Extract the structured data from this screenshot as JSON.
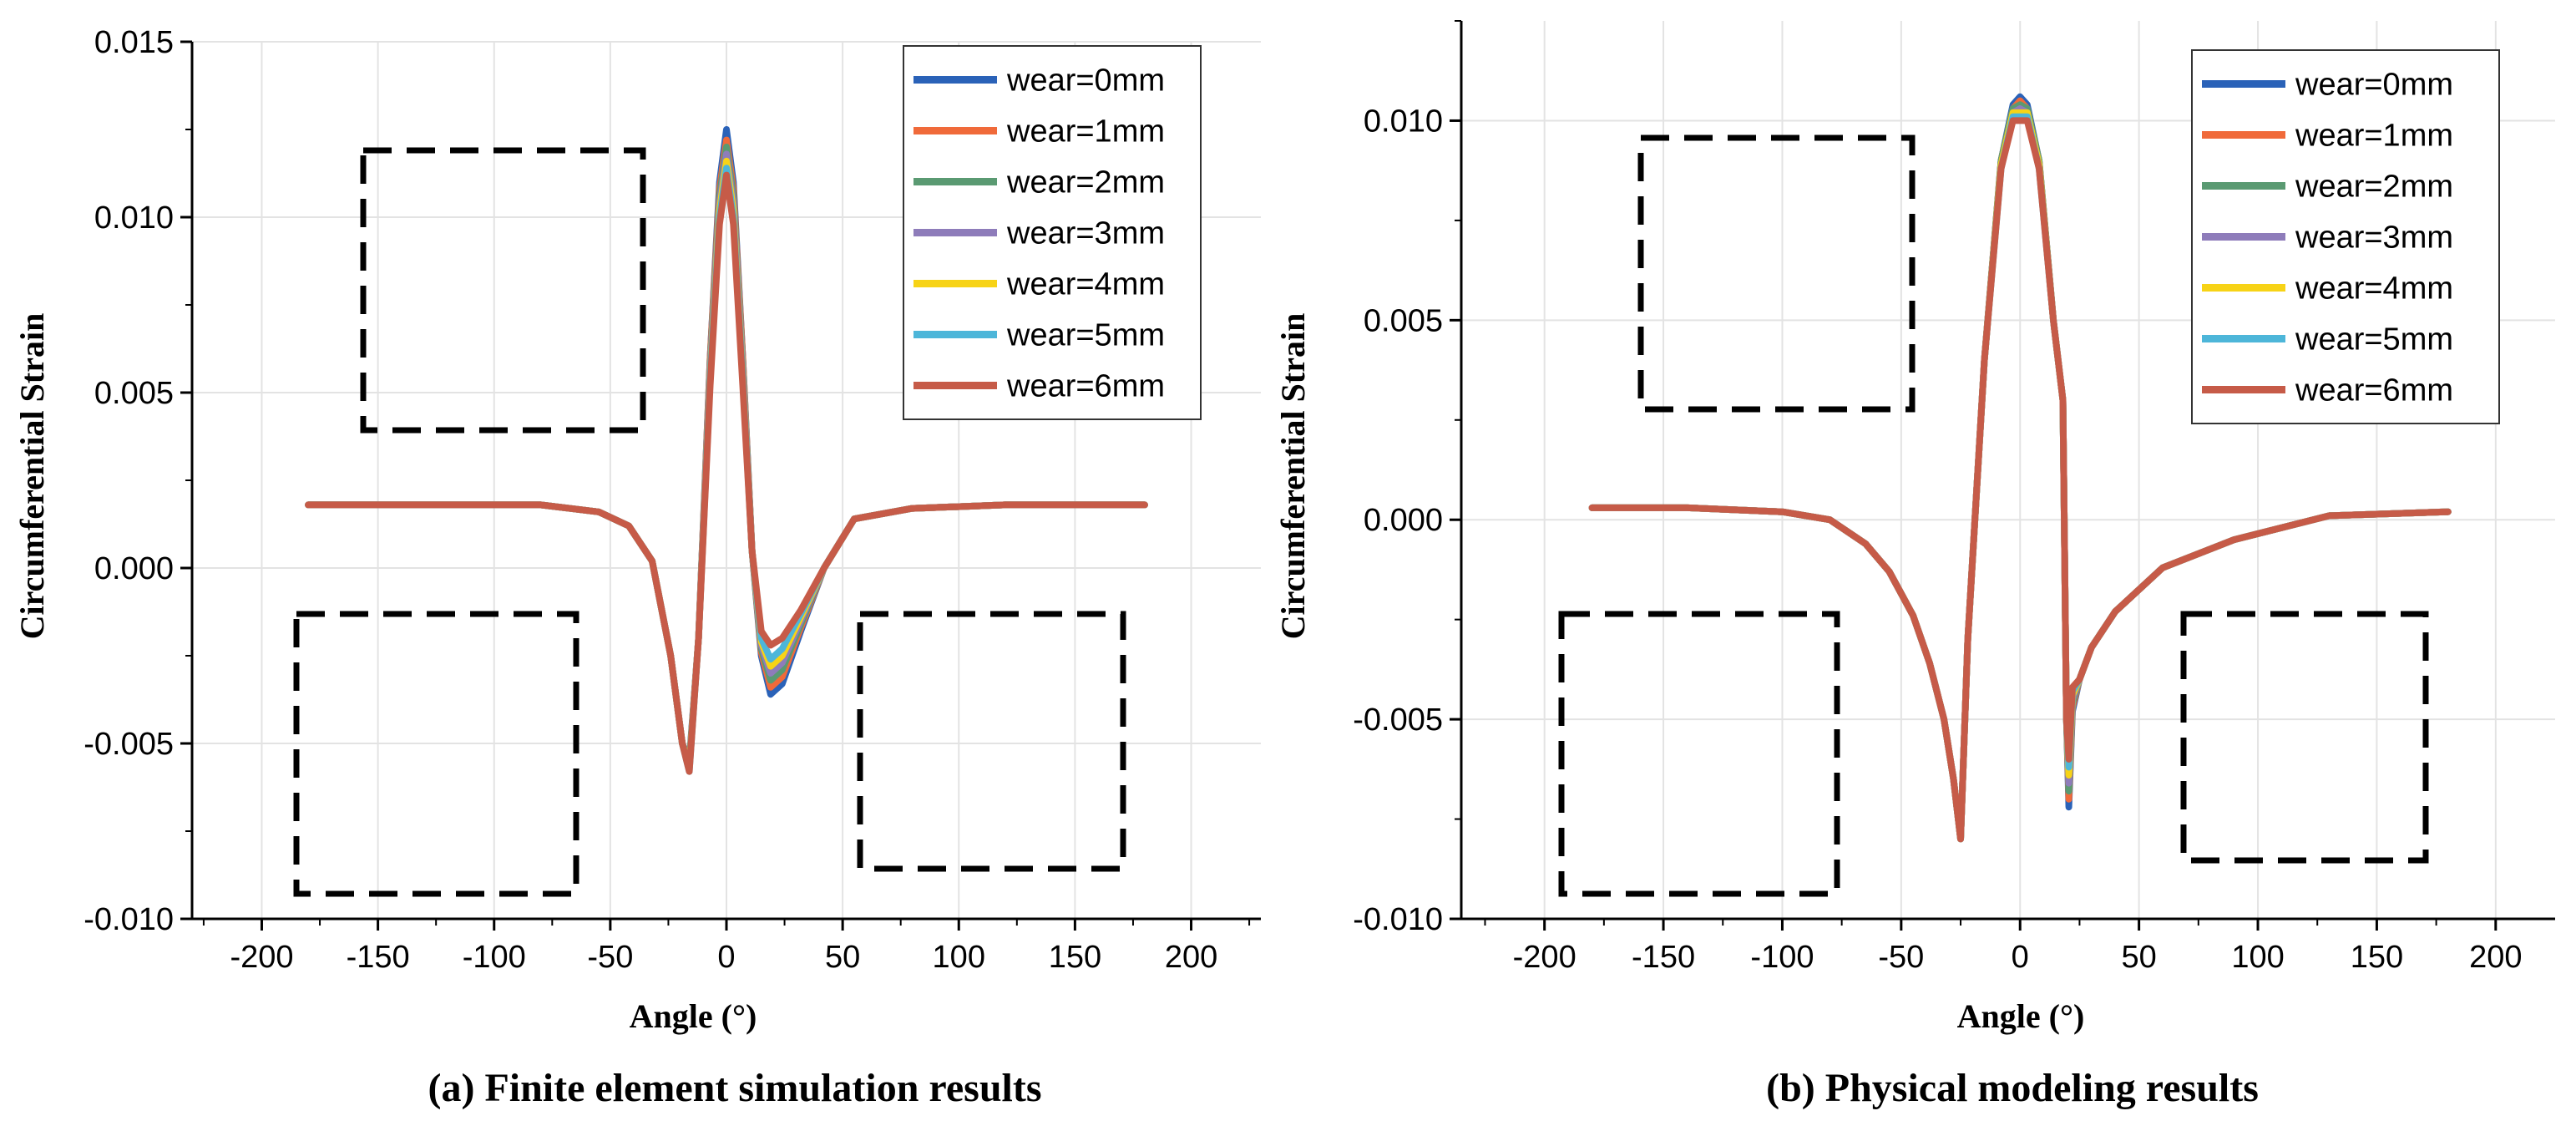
{
  "colors": {
    "wear_0": "#2a62b8",
    "wear_1": "#f06a3a",
    "wear_2": "#5a9a72",
    "wear_3": "#8e7cba",
    "wear_4": "#f7d316",
    "wear_5": "#4db6d9",
    "wear_6": "#c65b48"
  },
  "chart_data": [
    {
      "type": "line",
      "title": "(a) Finite element simulation results",
      "xlabel": "Angle (°)",
      "ylabel": "Circumferential Strain",
      "xlim": [
        -230,
        230
      ],
      "ylim": [
        -0.01,
        0.015
      ],
      "xticks": [
        -200,
        -150,
        -100,
        -50,
        0,
        50,
        100,
        150,
        200
      ],
      "xtick_labels": [
        "-200",
        "-150",
        "-100",
        "-50",
        "0",
        "50",
        "100",
        "150",
        "200"
      ],
      "yticks": [
        -0.01,
        -0.005,
        0.0,
        0.005,
        0.01,
        0.015
      ],
      "ytick_labels": [
        "-0.010",
        "-0.005",
        "0.000",
        "0.005",
        "0.010",
        "0.015"
      ],
      "legend_position": "top-right",
      "grid": true,
      "series": [
        {
          "name": "wear=0mm",
          "x": [
            -180,
            -120,
            -80,
            -55,
            -42,
            -32,
            -24,
            -19,
            -16,
            -12,
            -7,
            -3,
            0,
            3,
            7,
            11,
            15,
            19,
            24,
            32,
            42,
            55,
            80,
            120,
            180
          ],
          "y": [
            0.0018,
            0.0018,
            0.0018,
            0.0016,
            0.0012,
            0.0002,
            -0.0025,
            -0.005,
            -0.0055,
            -0.002,
            0.006,
            0.011,
            0.0125,
            0.011,
            0.006,
            0.0005,
            -0.0025,
            -0.0036,
            -0.0033,
            -0.0018,
            0.0,
            0.0014,
            0.0017,
            0.0018,
            0.0018
          ]
        },
        {
          "name": "wear=1mm",
          "x": [
            -180,
            -120,
            -80,
            -55,
            -42,
            -32,
            -24,
            -19,
            -16,
            -12,
            -7,
            -3,
            0,
            3,
            7,
            11,
            15,
            19,
            24,
            32,
            42,
            55,
            80,
            120,
            180
          ],
          "y": [
            0.0018,
            0.0018,
            0.0018,
            0.0016,
            0.0012,
            0.0002,
            -0.0025,
            -0.005,
            -0.0056,
            -0.002,
            0.006,
            0.0108,
            0.0122,
            0.0108,
            0.006,
            0.0005,
            -0.0024,
            -0.0034,
            -0.0031,
            -0.0017,
            0.0,
            0.0014,
            0.0017,
            0.0018,
            0.0018
          ]
        },
        {
          "name": "wear=2mm",
          "x": [
            -180,
            -120,
            -80,
            -55,
            -42,
            -32,
            -24,
            -19,
            -16,
            -12,
            -7,
            -3,
            0,
            3,
            7,
            11,
            15,
            19,
            24,
            32,
            42,
            55,
            80,
            120,
            180
          ],
          "y": [
            0.0018,
            0.0018,
            0.0018,
            0.0016,
            0.0012,
            0.0002,
            -0.0025,
            -0.005,
            -0.0056,
            -0.002,
            0.0058,
            0.0106,
            0.012,
            0.0106,
            0.0058,
            0.0005,
            -0.0023,
            -0.0032,
            -0.0029,
            -0.0016,
            0.0,
            0.0014,
            0.0017,
            0.0018,
            0.0018
          ]
        },
        {
          "name": "wear=3mm",
          "x": [
            -180,
            -120,
            -80,
            -55,
            -42,
            -32,
            -24,
            -19,
            -16,
            -12,
            -7,
            -3,
            0,
            3,
            7,
            11,
            15,
            19,
            24,
            32,
            42,
            55,
            80,
            120,
            180
          ],
          "y": [
            0.0018,
            0.0018,
            0.0018,
            0.0016,
            0.0012,
            0.0002,
            -0.0025,
            -0.005,
            -0.0057,
            -0.002,
            0.0057,
            0.0104,
            0.0118,
            0.0104,
            0.0057,
            0.0005,
            -0.0022,
            -0.003,
            -0.0027,
            -0.0015,
            0.0,
            0.0014,
            0.0017,
            0.0018,
            0.0018
          ]
        },
        {
          "name": "wear=4mm",
          "x": [
            -180,
            -120,
            -80,
            -55,
            -42,
            -32,
            -24,
            -19,
            -16,
            -12,
            -7,
            -3,
            0,
            3,
            7,
            11,
            15,
            19,
            24,
            32,
            42,
            55,
            80,
            120,
            180
          ],
          "y": [
            0.0018,
            0.0018,
            0.0018,
            0.0016,
            0.0012,
            0.0002,
            -0.0025,
            -0.005,
            -0.0057,
            -0.002,
            0.0055,
            0.0102,
            0.0116,
            0.0102,
            0.0055,
            0.0005,
            -0.0021,
            -0.0028,
            -0.0025,
            -0.0014,
            0.0,
            0.0014,
            0.0017,
            0.0018,
            0.0018
          ]
        },
        {
          "name": "wear=5mm",
          "x": [
            -180,
            -120,
            -80,
            -55,
            -42,
            -32,
            -24,
            -19,
            -16,
            -12,
            -7,
            -3,
            0,
            3,
            7,
            11,
            15,
            19,
            24,
            32,
            42,
            55,
            80,
            120,
            180
          ],
          "y": [
            0.0018,
            0.0018,
            0.0018,
            0.0016,
            0.0012,
            0.0002,
            -0.0025,
            -0.005,
            -0.0058,
            -0.002,
            0.0054,
            0.01,
            0.0114,
            0.01,
            0.0054,
            0.0005,
            -0.002,
            -0.0026,
            -0.0023,
            -0.0013,
            0.0,
            0.0014,
            0.0017,
            0.0018,
            0.0018
          ]
        },
        {
          "name": "wear=6mm",
          "x": [
            -180,
            -120,
            -80,
            -55,
            -42,
            -32,
            -24,
            -19,
            -16,
            -12,
            -7,
            -3,
            0,
            3,
            7,
            11,
            15,
            19,
            24,
            32,
            42,
            55,
            80,
            120,
            180
          ],
          "y": [
            0.0018,
            0.0018,
            0.0018,
            0.0016,
            0.0012,
            0.0002,
            -0.0025,
            -0.005,
            -0.0058,
            -0.002,
            0.0052,
            0.0098,
            0.0112,
            0.0098,
            0.0052,
            0.0005,
            -0.0018,
            -0.0022,
            -0.002,
            -0.0012,
            0.0,
            0.0014,
            0.0017,
            0.0018,
            0.0018
          ]
        }
      ]
    },
    {
      "type": "line",
      "title": "(b) Physical modeling results",
      "xlabel": "Angle (°)",
      "ylabel": "Circumferential Strain",
      "xlim": [
        -235,
        225
      ],
      "ylim": [
        -0.01,
        0.0125
      ],
      "xticks": [
        -200,
        -150,
        -100,
        -50,
        0,
        50,
        100,
        150,
        200
      ],
      "xtick_labels": [
        "-200",
        "-150",
        "-100",
        "-50",
        "0",
        "50",
        "100",
        "150",
        "200"
      ],
      "yticks": [
        -0.01,
        -0.005,
        0.0,
        0.005,
        0.01
      ],
      "ytick_labels": [
        "-0.010",
        "-0.005",
        "0.000",
        "0.005",
        "0.010"
      ],
      "legend_position": "top-right",
      "grid": true,
      "series": [
        {
          "name": "wear=0mm",
          "x": [
            -180,
            -140,
            -100,
            -80,
            -65,
            -55,
            -45,
            -38,
            -32,
            -28,
            -25,
            -22,
            -15,
            -8,
            -3,
            0,
            3,
            8,
            14,
            18,
            19.5,
            20.5,
            22,
            25,
            30,
            40,
            60,
            90,
            130,
            180
          ],
          "y": [
            0.0003,
            0.0003,
            0.0002,
            0.0,
            -0.0006,
            -0.0013,
            -0.0024,
            -0.0036,
            -0.005,
            -0.0065,
            -0.008,
            -0.003,
            0.004,
            0.009,
            0.0104,
            0.0106,
            0.0104,
            0.009,
            0.005,
            0.003,
            -0.005,
            -0.0072,
            -0.0048,
            -0.004,
            -0.0032,
            -0.0023,
            -0.0012,
            -0.0005,
            0.0001,
            0.0002
          ]
        },
        {
          "name": "wear=1mm",
          "x": [
            -180,
            -140,
            -100,
            -80,
            -65,
            -55,
            -45,
            -38,
            -32,
            -28,
            -25,
            -22,
            -15,
            -8,
            -3,
            0,
            3,
            8,
            14,
            18,
            19.5,
            20.5,
            22,
            25,
            30,
            40,
            60,
            90,
            130,
            180
          ],
          "y": [
            0.0003,
            0.0003,
            0.0002,
            0.0,
            -0.0006,
            -0.0013,
            -0.0024,
            -0.0036,
            -0.005,
            -0.0065,
            -0.008,
            -0.003,
            0.004,
            0.009,
            0.0103,
            0.0105,
            0.0103,
            0.009,
            0.005,
            0.003,
            -0.005,
            -0.007,
            -0.0047,
            -0.004,
            -0.0032,
            -0.0023,
            -0.0012,
            -0.0005,
            0.0001,
            0.0002
          ]
        },
        {
          "name": "wear=2mm",
          "x": [
            -180,
            -140,
            -100,
            -80,
            -65,
            -55,
            -45,
            -38,
            -32,
            -28,
            -25,
            -22,
            -15,
            -8,
            -3,
            0,
            3,
            8,
            14,
            18,
            19.5,
            20.5,
            22,
            25,
            30,
            40,
            60,
            90,
            130,
            180
          ],
          "y": [
            0.0003,
            0.0003,
            0.0002,
            0.0,
            -0.0006,
            -0.0013,
            -0.0024,
            -0.0036,
            -0.005,
            -0.0065,
            -0.008,
            -0.003,
            0.004,
            0.009,
            0.0103,
            0.0104,
            0.0103,
            0.009,
            0.005,
            0.003,
            -0.005,
            -0.0068,
            -0.0046,
            -0.004,
            -0.0032,
            -0.0023,
            -0.0012,
            -0.0005,
            0.0001,
            0.0002
          ]
        },
        {
          "name": "wear=3mm",
          "x": [
            -180,
            -140,
            -100,
            -80,
            -65,
            -55,
            -45,
            -38,
            -32,
            -28,
            -25,
            -22,
            -15,
            -8,
            -3,
            0,
            3,
            8,
            14,
            18,
            19.5,
            20.5,
            22,
            25,
            30,
            40,
            60,
            90,
            130,
            180
          ],
          "y": [
            0.0003,
            0.0003,
            0.0002,
            0.0,
            -0.0006,
            -0.0013,
            -0.0024,
            -0.0036,
            -0.005,
            -0.0065,
            -0.008,
            -0.003,
            0.004,
            0.0089,
            0.0102,
            0.0103,
            0.0102,
            0.0089,
            0.005,
            0.003,
            -0.005,
            -0.0066,
            -0.0045,
            -0.004,
            -0.0032,
            -0.0023,
            -0.0012,
            -0.0005,
            0.0001,
            0.0002
          ]
        },
        {
          "name": "wear=4mm",
          "x": [
            -180,
            -140,
            -100,
            -80,
            -65,
            -55,
            -45,
            -38,
            -32,
            -28,
            -25,
            -22,
            -15,
            -8,
            -3,
            0,
            3,
            8,
            14,
            18,
            19.5,
            20.5,
            22,
            25,
            30,
            40,
            60,
            90,
            130,
            180
          ],
          "y": [
            0.0003,
            0.0003,
            0.0002,
            0.0,
            -0.0006,
            -0.0013,
            -0.0024,
            -0.0036,
            -0.005,
            -0.0065,
            -0.008,
            -0.003,
            0.004,
            0.0089,
            0.0102,
            0.0102,
            0.0102,
            0.0089,
            0.005,
            0.003,
            -0.005,
            -0.0064,
            -0.0044,
            -0.004,
            -0.0032,
            -0.0023,
            -0.0012,
            -0.0005,
            0.0001,
            0.0002
          ]
        },
        {
          "name": "wear=5mm",
          "x": [
            -180,
            -140,
            -100,
            -80,
            -65,
            -55,
            -45,
            -38,
            -32,
            -28,
            -25,
            -22,
            -15,
            -8,
            -3,
            0,
            3,
            8,
            14,
            18,
            19.5,
            20.5,
            22,
            25,
            30,
            40,
            60,
            90,
            130,
            180
          ],
          "y": [
            0.0003,
            0.0003,
            0.0002,
            0.0,
            -0.0006,
            -0.0013,
            -0.0024,
            -0.0036,
            -0.005,
            -0.0065,
            -0.008,
            -0.003,
            0.004,
            0.0088,
            0.0101,
            0.0101,
            0.0101,
            0.0088,
            0.005,
            0.003,
            -0.005,
            -0.0062,
            -0.0043,
            -0.004,
            -0.0032,
            -0.0023,
            -0.0012,
            -0.0005,
            0.0001,
            0.0002
          ]
        },
        {
          "name": "wear=6mm",
          "x": [
            -180,
            -140,
            -100,
            -80,
            -65,
            -55,
            -45,
            -38,
            -32,
            -28,
            -25,
            -22,
            -15,
            -8,
            -3,
            0,
            3,
            8,
            14,
            18,
            19.5,
            20.5,
            22,
            25,
            30,
            40,
            60,
            90,
            130,
            180
          ],
          "y": [
            0.0003,
            0.0003,
            0.0002,
            0.0,
            -0.0006,
            -0.0013,
            -0.0024,
            -0.0036,
            -0.005,
            -0.0065,
            -0.008,
            -0.003,
            0.004,
            0.0088,
            0.01,
            0.01,
            0.01,
            0.0088,
            0.005,
            0.003,
            -0.005,
            -0.006,
            -0.0042,
            -0.004,
            -0.0032,
            -0.0023,
            -0.0012,
            -0.0005,
            0.0001,
            0.0002
          ]
        }
      ]
    }
  ]
}
